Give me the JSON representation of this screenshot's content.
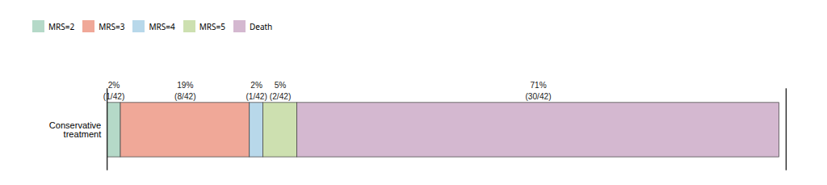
{
  "chart_data": {
    "type": "bar",
    "orientation": "horizontal",
    "stacked": true,
    "categories": [
      "Conservative\ntreatment"
    ],
    "series": [
      {
        "name": "MRS=2",
        "color": "#b5d9c8",
        "values": [
          2
        ],
        "value_labels": [
          "2%"
        ],
        "fraction_labels": [
          "(1/42)"
        ]
      },
      {
        "name": "MRS=3",
        "color": "#f0a898",
        "values": [
          19
        ],
        "value_labels": [
          "19%"
        ],
        "fraction_labels": [
          "(8/42)"
        ]
      },
      {
        "name": "MRS=4",
        "color": "#b8d8ea",
        "values": [
          2
        ],
        "value_labels": [
          "2%"
        ],
        "fraction_labels": [
          "(1/42)"
        ]
      },
      {
        "name": "MRS=5",
        "color": "#cde0b0",
        "values": [
          5
        ],
        "value_labels": [
          "5%"
        ],
        "fraction_labels": [
          "(2/42)"
        ]
      },
      {
        "name": "Death",
        "color": "#d4b8d0",
        "values": [
          71
        ],
        "value_labels": [
          "71%"
        ],
        "fraction_labels": [
          "(30/42)"
        ]
      }
    ],
    "xlim": [
      0,
      100
    ],
    "data_labels": true,
    "tick_labels": "y",
    "legend": "upper left",
    "grid": false
  }
}
